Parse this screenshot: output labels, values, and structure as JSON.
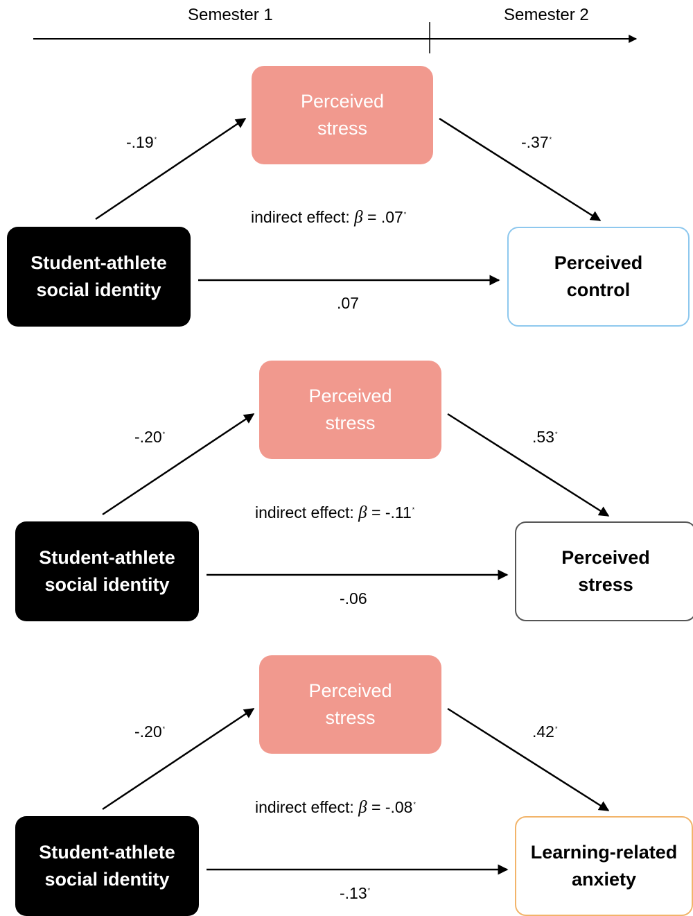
{
  "timeline": {
    "semester1": "Semester 1",
    "semester2": "Semester 2"
  },
  "panels": [
    {
      "predictor": "Student-athlete\nsocial identity",
      "mediator": "Perceived\nstress",
      "outcome": "Perceived\ncontrol",
      "outcome_border_color": "#8ec8ee",
      "a_path": "-.19",
      "a_sig": "*",
      "b_path": "-.37",
      "b_sig": "*",
      "c_path": ".07",
      "c_sig": "",
      "indirect_prefix": "indirect effect: ",
      "indirect_symbol": "β",
      "indirect_value": " = .07",
      "indirect_sig": "*"
    },
    {
      "predictor": "Student-athlete\nsocial identity",
      "mediator": "Perceived\nstress",
      "outcome": "Perceived\nstress",
      "outcome_border_color": "#555555",
      "a_path": "-.20",
      "a_sig": "*",
      "b_path": ".53",
      "b_sig": "*",
      "c_path": "-.06",
      "c_sig": "",
      "indirect_prefix": "indirect effect: ",
      "indirect_symbol": "β",
      "indirect_value": " = -.11",
      "indirect_sig": "*"
    },
    {
      "predictor": "Student-athlete\nsocial identity",
      "mediator": "Perceived\nstress",
      "outcome": "Learning-related\nanxiety",
      "outcome_border_color": "#f2b46a",
      "a_path": "-.20",
      "a_sig": "*",
      "b_path": ".42",
      "b_sig": "*",
      "c_path": "-.13",
      "c_sig": "*",
      "indirect_prefix": "indirect effect: ",
      "indirect_symbol": "β",
      "indirect_value": " = -.08",
      "indirect_sig": "*"
    }
  ]
}
